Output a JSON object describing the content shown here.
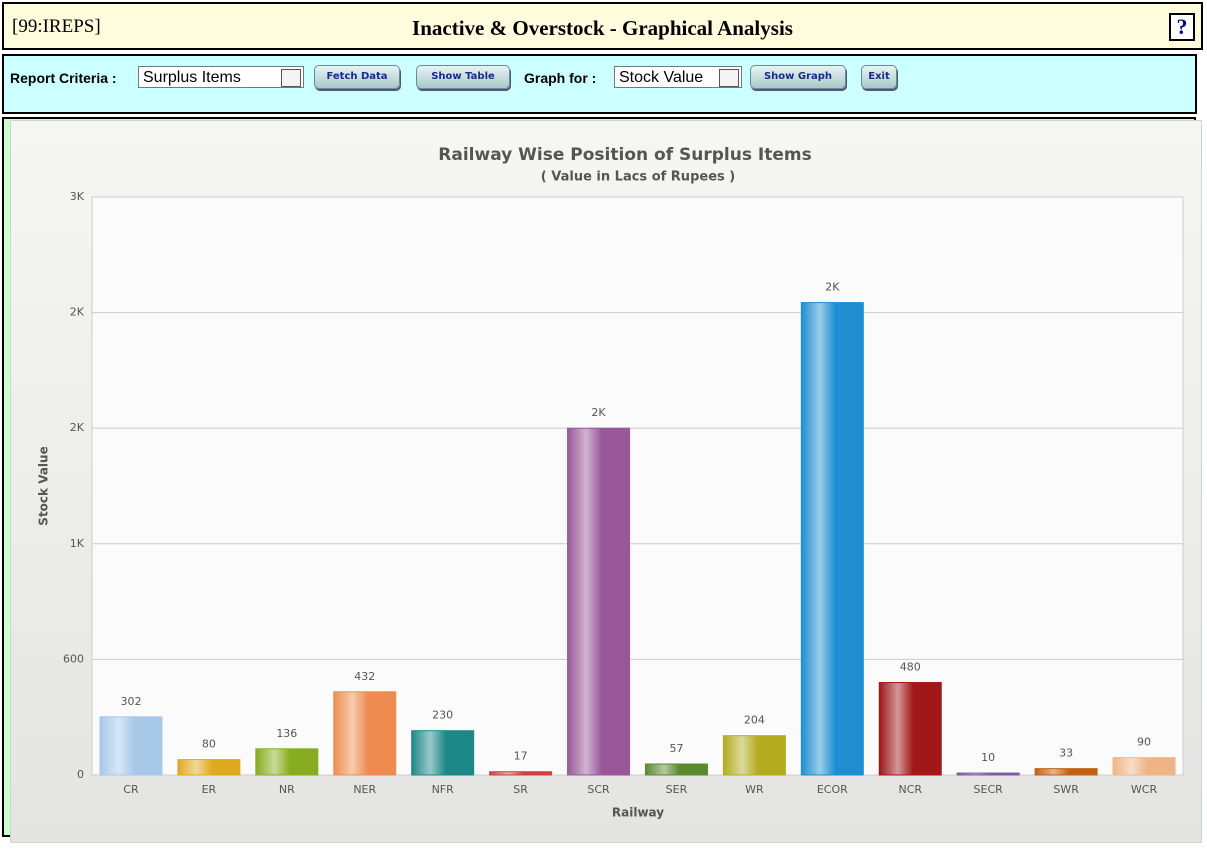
{
  "header": {
    "code": "[99:IREPS]",
    "title": "Inactive & Overstock - Graphical Analysis",
    "help": "?"
  },
  "toolbar": {
    "criteria_label": "Report Criteria :",
    "criteria_value": "Surplus Items",
    "fetch": "Fetch Data",
    "table": "Show Table",
    "graph_label": "Graph for :",
    "graph_value": "Stock Value",
    "show_graph": "Show Graph",
    "exit": "Exit"
  },
  "chart_data": {
    "type": "bar",
    "title": "Railway Wise Position of Surplus Items",
    "subtitle": "( Value in Lacs of Rupees )",
    "xlabel": "Railway",
    "ylabel": "Stock Value",
    "categories": [
      "CR",
      "ER",
      "NR",
      "NER",
      "NFR",
      "SR",
      "SCR",
      "SER",
      "WR",
      "ECOR",
      "NCR",
      "SECR",
      "SWR",
      "WCR"
    ],
    "values": [
      302,
      80,
      136,
      432,
      230,
      17,
      1800,
      57,
      204,
      2452,
      480,
      10,
      33,
      90
    ],
    "value_labels": [
      "302",
      "80",
      "136",
      "432",
      "230",
      "17",
      "2K",
      "57",
      "204",
      "2K",
      "480",
      "10",
      "33",
      "90"
    ],
    "colors": [
      "#a8c8e8",
      "#e0aa20",
      "#88ac20",
      "#ee8c50",
      "#1e8888",
      "#d04040",
      "#985898",
      "#5a8a30",
      "#b4ac20",
      "#1e8ed0",
      "#a01818",
      "#7a5aa0",
      "#c06010",
      "#f0b484"
    ],
    "ylim": [
      0,
      3000
    ],
    "yticks": [
      0,
      600,
      {
        "value": 1200,
        "label": "1K"
      },
      {
        "value": 1800,
        "label": "2K"
      },
      {
        "value": 2400,
        "label": "2K"
      },
      {
        "value": 3000,
        "label": "3K"
      }
    ],
    "grid": true
  }
}
